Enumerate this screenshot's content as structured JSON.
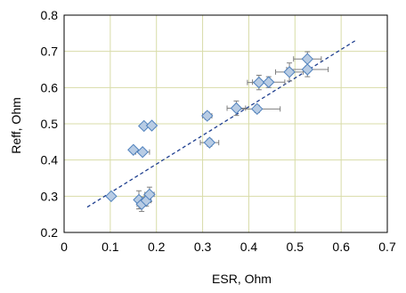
{
  "chart_data": {
    "type": "scatter",
    "title": "",
    "xlabel": "ESR, Ohm",
    "ylabel": "Reff, Ohm",
    "xlim": [
      0,
      0.7
    ],
    "ylim": [
      0.2,
      0.8
    ],
    "xticks": [
      0,
      0.1,
      0.2,
      0.3,
      0.4,
      0.5,
      0.6,
      0.7
    ],
    "yticks": [
      0.2,
      0.3,
      0.4,
      0.5,
      0.6,
      0.7,
      0.8
    ],
    "xtick_labels": [
      "0",
      "0.1",
      "0.2",
      "0.3",
      "0.4",
      "0.5",
      "0.6",
      "0.7"
    ],
    "ytick_labels": [
      "0.2",
      "0.3",
      "0.4",
      "0.5",
      "0.6",
      "0.7",
      "0.8"
    ],
    "grid": true,
    "legend": false,
    "marker": "diamond",
    "marker_color": "#b8cce4",
    "marker_edge_color": "#4f81bd",
    "gridline_color": "#d8dca8",
    "trendline": {
      "style": "dashed",
      "color": "#1f3f8f",
      "x": [
        0.05,
        0.63
      ],
      "y": [
        0.27,
        0.729
      ]
    },
    "points": [
      {
        "x": 0.102,
        "y": 0.3,
        "xerr": 0.0,
        "yerr": 0.0
      },
      {
        "x": 0.15,
        "y": 0.428,
        "xerr": 0.0,
        "yerr": 0.0
      },
      {
        "x": 0.17,
        "y": 0.422,
        "xerr": 0.015,
        "yerr": 0.0
      },
      {
        "x": 0.173,
        "y": 0.494,
        "xerr": 0.0,
        "yerr": 0.0
      },
      {
        "x": 0.19,
        "y": 0.495,
        "xerr": 0.0,
        "yerr": 0.0
      },
      {
        "x": 0.162,
        "y": 0.29,
        "xerr": 0.0,
        "yerr": 0.025
      },
      {
        "x": 0.168,
        "y": 0.278,
        "xerr": 0.01,
        "yerr": 0.02
      },
      {
        "x": 0.178,
        "y": 0.288,
        "xerr": 0.01,
        "yerr": 0.015
      },
      {
        "x": 0.185,
        "y": 0.305,
        "xerr": 0.01,
        "yerr": 0.02
      },
      {
        "x": 0.31,
        "y": 0.522,
        "xerr": 0.01,
        "yerr": 0.01
      },
      {
        "x": 0.315,
        "y": 0.448,
        "xerr": 0.02,
        "yerr": 0.01
      },
      {
        "x": 0.373,
        "y": 0.543,
        "xerr": 0.02,
        "yerr": 0.02
      },
      {
        "x": 0.418,
        "y": 0.541,
        "xerr": 0.05,
        "yerr": 0.01
      },
      {
        "x": 0.422,
        "y": 0.614,
        "xerr": 0.025,
        "yerr": 0.02
      },
      {
        "x": 0.443,
        "y": 0.615,
        "xerr": 0.035,
        "yerr": 0.015
      },
      {
        "x": 0.488,
        "y": 0.643,
        "xerr": 0.03,
        "yerr": 0.025
      },
      {
        "x": 0.527,
        "y": 0.679,
        "xerr": 0.03,
        "yerr": 0.02
      },
      {
        "x": 0.527,
        "y": 0.65,
        "xerr": 0.045,
        "yerr": 0.02
      }
    ]
  }
}
